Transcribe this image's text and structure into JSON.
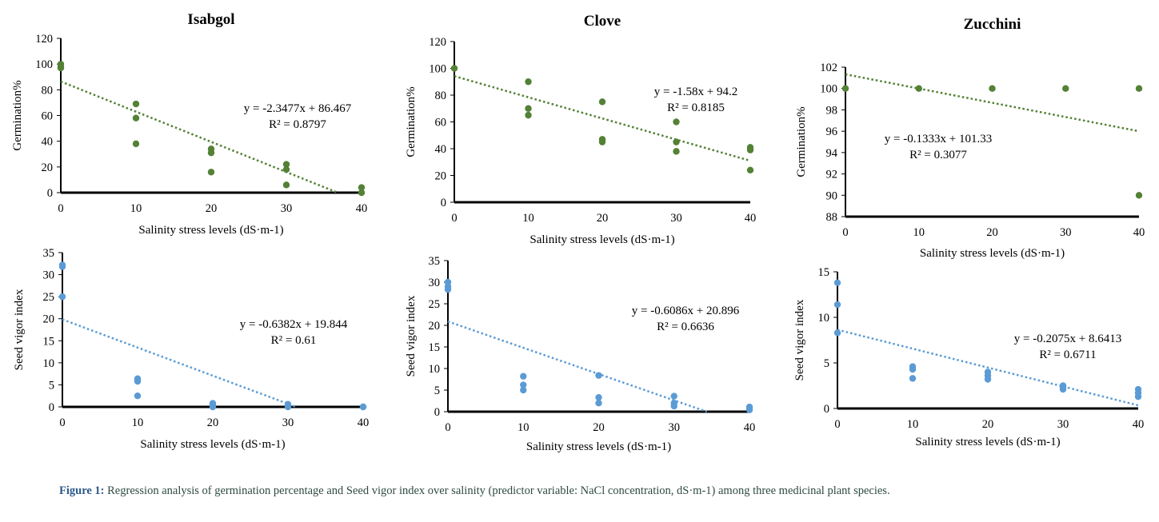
{
  "caption": {
    "label": "Figure 1:",
    "text": "Regression analysis of germination percentage and Seed vigor index over salinity (predictor variable: NaCl concentration, dS·m-1) among three medicinal plant species."
  },
  "colors": {
    "germination": "#538135",
    "vigor": "#5b9bd5"
  },
  "chart_data": [
    {
      "type": "scatter",
      "title": "Isabgol",
      "xlabel": "Salinity stress levels (dS·m-1)",
      "ylabel": "Germination%",
      "xlim": [
        0,
        40
      ],
      "ylim": [
        0,
        120
      ],
      "xticks": [
        0,
        10,
        20,
        30,
        40
      ],
      "yticks": [
        0,
        20,
        40,
        60,
        80,
        100,
        120
      ],
      "points": [
        [
          0,
          100
        ],
        [
          0,
          98
        ],
        [
          0,
          97
        ],
        [
          10,
          69
        ],
        [
          10,
          58
        ],
        [
          10,
          38
        ],
        [
          20,
          34
        ],
        [
          20,
          31
        ],
        [
          20,
          16
        ],
        [
          30,
          22
        ],
        [
          30,
          18
        ],
        [
          30,
          6
        ],
        [
          40,
          4
        ],
        [
          40,
          0
        ]
      ],
      "trendline": {
        "slope": -2.3477,
        "intercept": 86.467
      },
      "equation": "y = -2.3477x + 86.467",
      "r2": "R² = 0.8797",
      "grid": false,
      "legend": "none"
    },
    {
      "type": "scatter",
      "title": "Clove",
      "xlabel": "Salinity stress levels (dS·m-1)",
      "ylabel": "Germination%",
      "xlim": [
        0,
        40
      ],
      "ylim": [
        0,
        120
      ],
      "xticks": [
        0,
        10,
        20,
        30,
        40
      ],
      "yticks": [
        0,
        20,
        40,
        60,
        80,
        100,
        120
      ],
      "points": [
        [
          0,
          100
        ],
        [
          10,
          90
        ],
        [
          10,
          70
        ],
        [
          10,
          65
        ],
        [
          20,
          75
        ],
        [
          20,
          47
        ],
        [
          20,
          45
        ],
        [
          30,
          60
        ],
        [
          30,
          45
        ],
        [
          30,
          38
        ],
        [
          40,
          41
        ],
        [
          40,
          39
        ],
        [
          40,
          24
        ]
      ],
      "trendline": {
        "slope": -1.58,
        "intercept": 94.2
      },
      "equation": "y = -1.58x + 94.2",
      "r2": "R² = 0.8185",
      "grid": false,
      "legend": "none"
    },
    {
      "type": "scatter",
      "title": "Zucchini",
      "xlabel": "Salinity stress levels (dS·m-1)",
      "ylabel": "Germination%",
      "xlim": [
        0,
        40
      ],
      "ylim": [
        88,
        102
      ],
      "xticks": [
        0,
        10,
        20,
        30,
        40
      ],
      "yticks": [
        88,
        90,
        92,
        94,
        96,
        98,
        100,
        102
      ],
      "points": [
        [
          0,
          100
        ],
        [
          10,
          100
        ],
        [
          20,
          100
        ],
        [
          30,
          100
        ],
        [
          40,
          100
        ],
        [
          40,
          90
        ]
      ],
      "trendline": {
        "slope": -0.1333,
        "intercept": 101.33
      },
      "equation": "y = -0.1333x + 101.33",
      "r2": "R² = 0.3077",
      "grid": false,
      "legend": "none"
    },
    {
      "type": "scatter",
      "title": "",
      "xlabel": "Salinity stress levels (dS·m-1)",
      "ylabel": "Seed vigor index",
      "xlim": [
        0,
        40
      ],
      "ylim": [
        0,
        35
      ],
      "xticks": [
        0,
        10,
        20,
        30,
        40
      ],
      "yticks": [
        0,
        5,
        10,
        15,
        20,
        25,
        30,
        35
      ],
      "points": [
        [
          0,
          32.2
        ],
        [
          0,
          31.8
        ],
        [
          0,
          25
        ],
        [
          10,
          6.4
        ],
        [
          10,
          5.8
        ],
        [
          10,
          2.5
        ],
        [
          20,
          0.8
        ],
        [
          20,
          0.5
        ],
        [
          20,
          0
        ],
        [
          30,
          0.6
        ],
        [
          30,
          0.3
        ],
        [
          30,
          0
        ],
        [
          40,
          0
        ],
        [
          40,
          0
        ]
      ],
      "trendline": {
        "slope": -0.6382,
        "intercept": 19.844
      },
      "equation": "y = -0.6382x + 19.844",
      "r2": "R² = 0.61",
      "grid": false,
      "legend": "none"
    },
    {
      "type": "scatter",
      "title": "",
      "xlabel": "Salinity stress levels (dS·m-1)",
      "ylabel": "Seed vigor index",
      "xlim": [
        0,
        40
      ],
      "ylim": [
        0,
        35
      ],
      "xticks": [
        0,
        10,
        20,
        30,
        40
      ],
      "yticks": [
        0,
        5,
        10,
        15,
        20,
        25,
        30,
        35
      ],
      "points": [
        [
          0,
          30
        ],
        [
          0,
          29
        ],
        [
          0,
          28.3
        ],
        [
          10,
          8.2
        ],
        [
          10,
          6.2
        ],
        [
          10,
          5
        ],
        [
          20,
          8.4
        ],
        [
          20,
          3.3
        ],
        [
          20,
          2
        ],
        [
          30,
          3.6
        ],
        [
          30,
          2
        ],
        [
          30,
          1.3
        ],
        [
          40,
          1.1
        ],
        [
          40,
          0.6
        ],
        [
          40,
          0.4
        ]
      ],
      "trendline": {
        "slope": -0.6086,
        "intercept": 20.896
      },
      "equation": "y = -0.6086x + 20.896",
      "r2": "R² = 0.6636",
      "grid": false,
      "legend": "none"
    },
    {
      "type": "scatter",
      "title": "",
      "xlabel": "Salinity stress levels (dS·m-1)",
      "ylabel": "Seed vigor index",
      "xlim": [
        0,
        40
      ],
      "ylim": [
        0,
        15
      ],
      "xticks": [
        0,
        10,
        20,
        30,
        40
      ],
      "yticks": [
        0,
        5,
        10,
        15
      ],
      "points": [
        [
          0,
          13.8
        ],
        [
          0,
          11.4
        ],
        [
          0,
          8.3
        ],
        [
          10,
          4.6
        ],
        [
          10,
          4.3
        ],
        [
          10,
          3.3
        ],
        [
          20,
          4
        ],
        [
          20,
          3.6
        ],
        [
          20,
          3.2
        ],
        [
          30,
          2.5
        ],
        [
          30,
          2.3
        ],
        [
          30,
          2.1
        ],
        [
          40,
          2.1
        ],
        [
          40,
          1.7
        ],
        [
          40,
          1.3
        ]
      ],
      "trendline": {
        "slope": -0.2075,
        "intercept": 8.6413
      },
      "equation": "y = -0.2075x + 8.6413",
      "r2": "R² = 0.6711",
      "grid": false,
      "legend": "none"
    }
  ]
}
